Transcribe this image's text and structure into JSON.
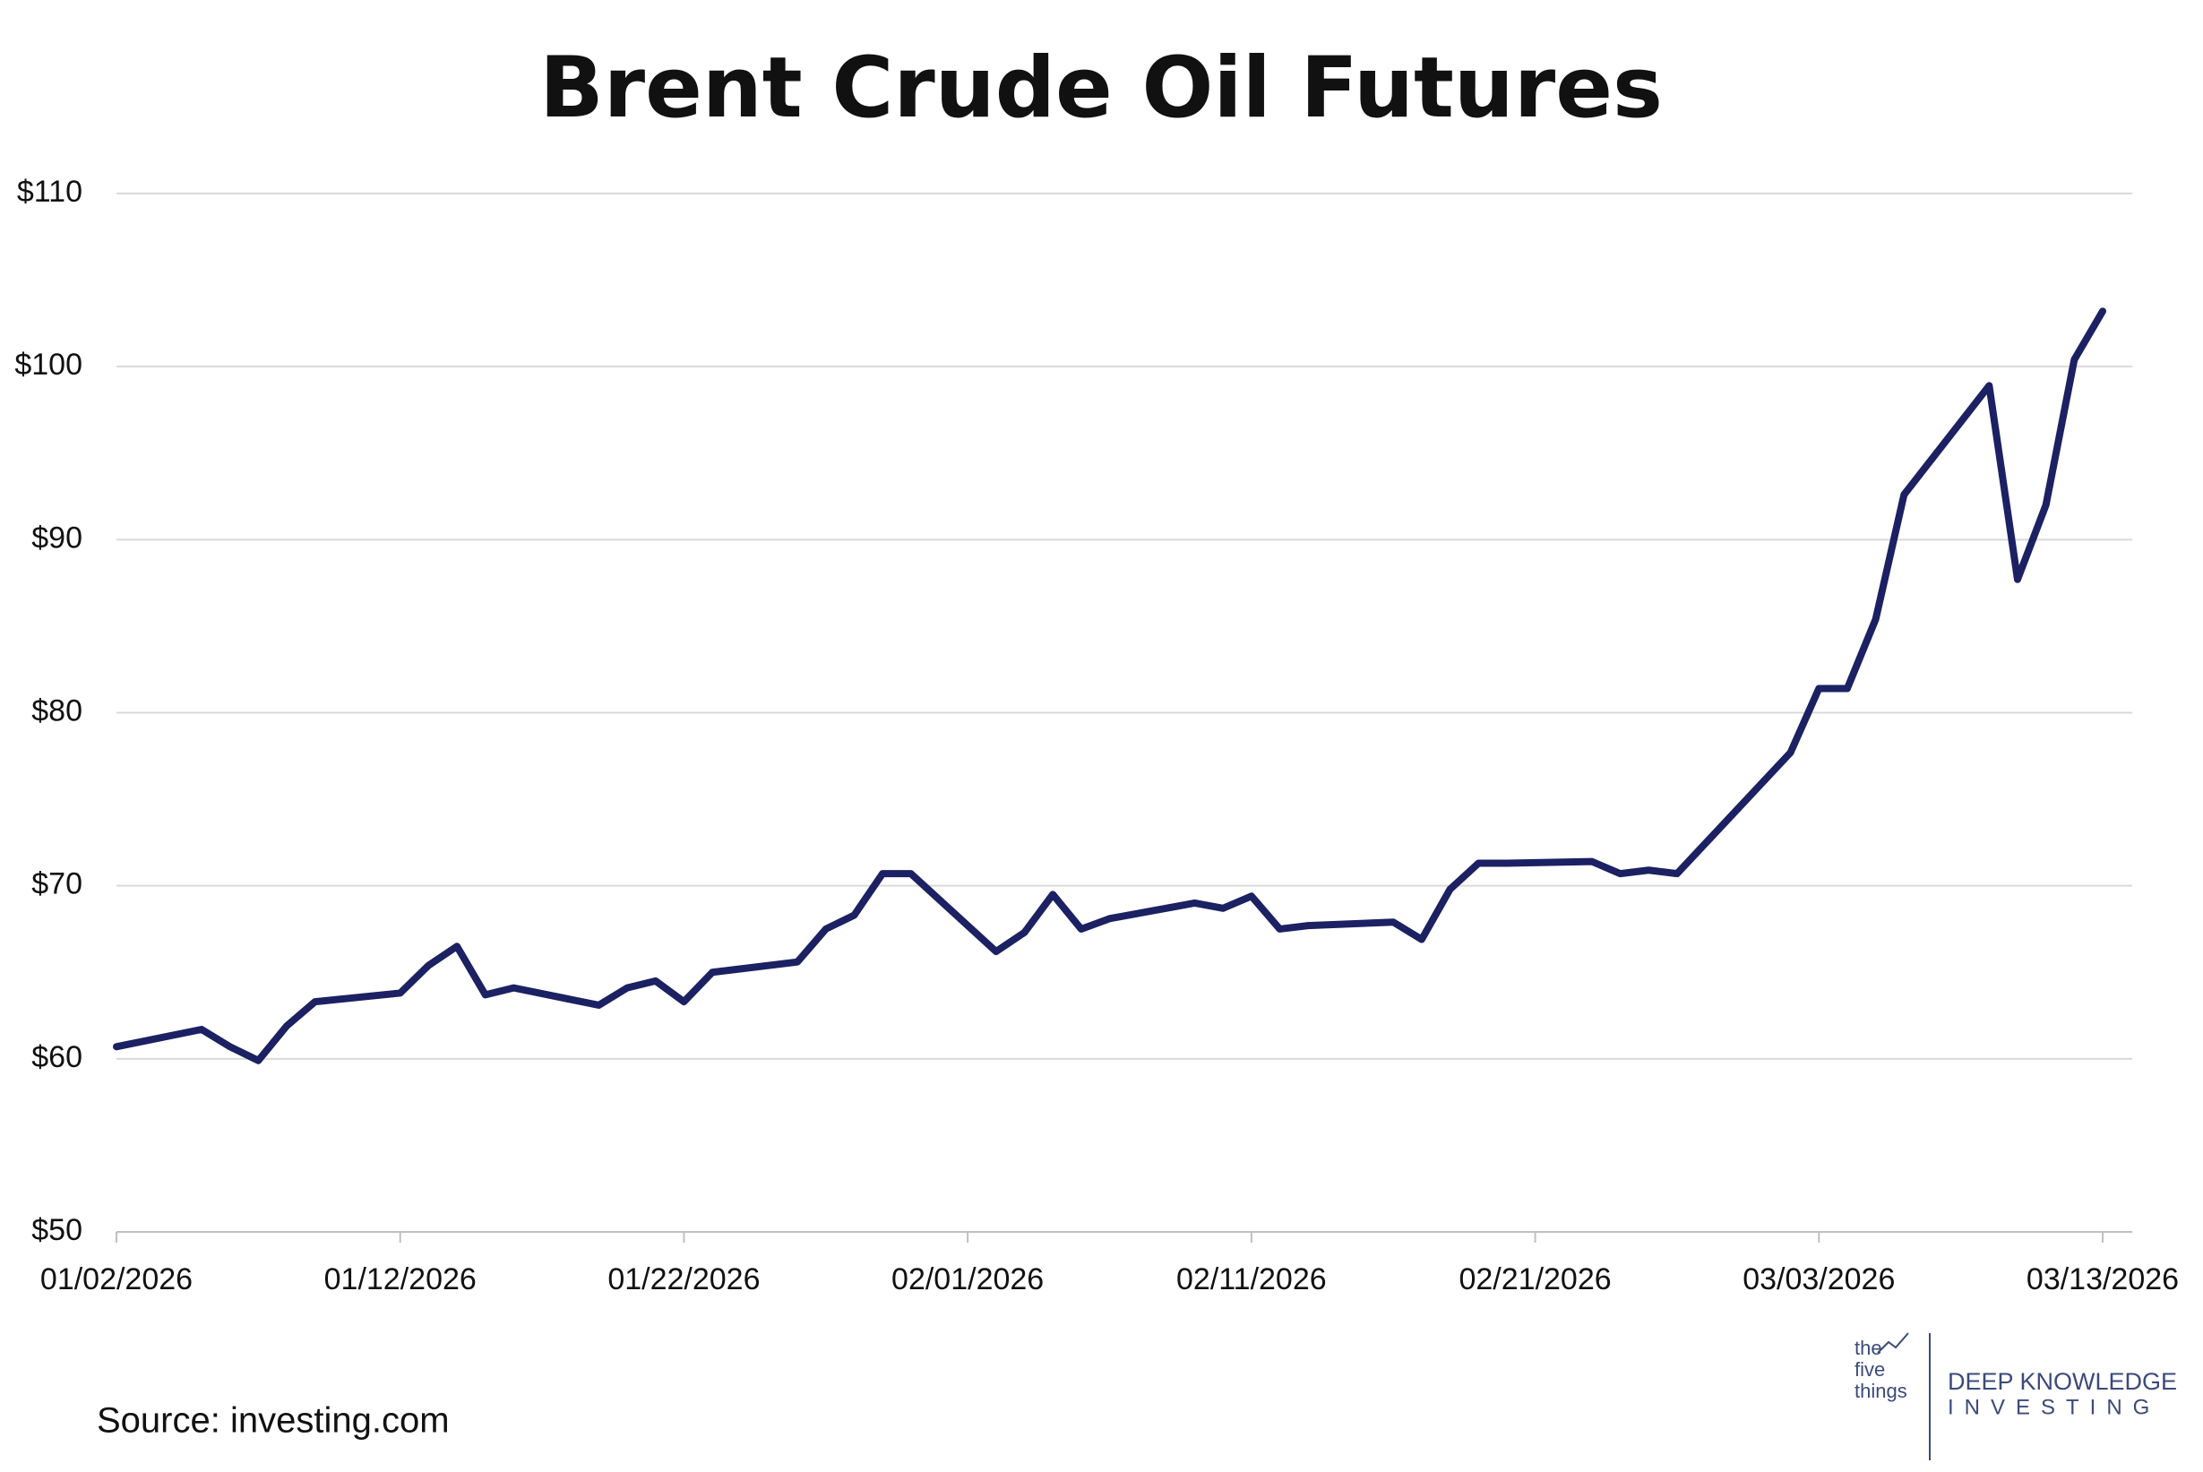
{
  "chart_data": {
    "type": "line",
    "title": "Brent Crude Oil Futures",
    "x": [
      "01/02/2026",
      "01/05/2026",
      "01/06/2026",
      "01/07/2026",
      "01/08/2026",
      "01/09/2026",
      "01/12/2026",
      "01/13/2026",
      "01/14/2026",
      "01/15/2026",
      "01/16/2026",
      "01/19/2026",
      "01/20/2026",
      "01/21/2026",
      "01/22/2026",
      "01/23/2026",
      "01/26/2026",
      "01/27/2026",
      "01/28/2026",
      "01/29/2026",
      "01/30/2026",
      "02/02/2026",
      "02/03/2026",
      "02/04/2026",
      "02/05/2026",
      "02/06/2026",
      "02/09/2026",
      "02/10/2026",
      "02/11/2026",
      "02/12/2026",
      "02/13/2026",
      "02/16/2026",
      "02/17/2026",
      "02/18/2026",
      "02/19/2026",
      "02/20/2026",
      "02/23/2026",
      "02/24/2026",
      "02/25/2026",
      "02/26/2026",
      "03/02/2026",
      "03/03/2026",
      "03/04/2026",
      "03/05/2026",
      "03/06/2026",
      "03/09/2026",
      "03/10/2026",
      "03/11/2026",
      "03/12/2026",
      "03/13/2026"
    ],
    "values": [
      60.7,
      61.7,
      60.7,
      59.9,
      61.9,
      63.3,
      63.8,
      65.4,
      66.5,
      63.7,
      64.1,
      63.1,
      64.1,
      64.5,
      63.3,
      65.0,
      65.6,
      67.5,
      68.3,
      70.7,
      70.7,
      66.2,
      67.3,
      69.5,
      67.5,
      68.1,
      69.0,
      68.7,
      69.4,
      67.5,
      67.7,
      67.9,
      66.9,
      69.8,
      71.3,
      71.3,
      71.4,
      70.7,
      70.9,
      70.7,
      77.7,
      81.4,
      81.4,
      85.4,
      92.6,
      98.9,
      87.7,
      92.0,
      100.4,
      103.2
    ],
    "color": "#1b2162",
    "xlim": [
      "01/02/2026",
      "03/13/2026"
    ],
    "xticks": [
      "01/02/2026",
      "01/12/2026",
      "01/22/2026",
      "02/01/2026",
      "02/11/2026",
      "02/21/2026",
      "03/03/2026",
      "03/13/2026"
    ],
    "ylim": [
      50,
      110
    ],
    "yticks": [
      {
        "value": 50,
        "label": "$50"
      },
      {
        "value": 60,
        "label": "$60"
      },
      {
        "value": 70,
        "label": "$70"
      },
      {
        "value": 80,
        "label": "$80"
      },
      {
        "value": 90,
        "label": "$90"
      },
      {
        "value": 100,
        "label": "$100"
      },
      {
        "value": 110,
        "label": "$110"
      }
    ],
    "grid": true,
    "source": "Source: investing.com"
  },
  "logo": {
    "mark": [
      "the",
      "five",
      "things"
    ],
    "name": "DEEP KNOWLEDGE",
    "subname": "INVESTING"
  }
}
